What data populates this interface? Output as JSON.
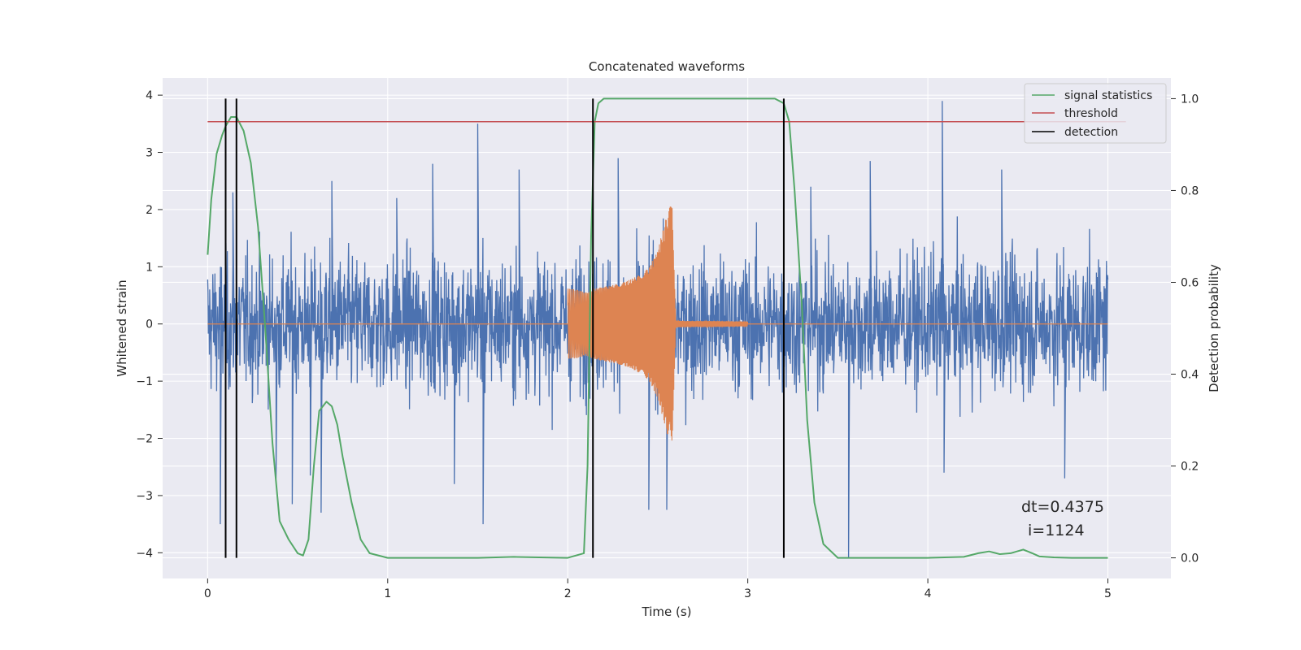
{
  "chart_data": {
    "type": "line",
    "title": "Concatenated waveforms",
    "xlabel": "Time (s)",
    "ylabel": "Whitened strain",
    "ylabel_right": "Detection probability",
    "xlim": [
      -0.25,
      5.35
    ],
    "ylim": [
      -4.45,
      4.3
    ],
    "ylim_right": [
      -0.045,
      1.045
    ],
    "x_ticks": [
      0,
      1,
      2,
      3,
      4,
      5
    ],
    "y_ticks": [
      -4,
      -3,
      -2,
      -1,
      0,
      1,
      2,
      3,
      4
    ],
    "y_ticks_right": [
      0.0,
      0.2,
      0.4,
      0.6,
      0.8,
      1.0
    ],
    "y_tick_labels_right": [
      "0.0",
      "0.2",
      "0.4",
      "0.6",
      "0.8",
      "1.0"
    ],
    "grid": true,
    "legend_position": "top-right",
    "colors": {
      "strain": "#4c72b0",
      "injection": "#dd8452",
      "statistic": "#55a868",
      "threshold": "#c44e52",
      "detection": "#000000",
      "background": "#eaeaf2",
      "grid": "#ffffff"
    },
    "series": [
      {
        "name": "",
        "key": "strain",
        "axis": "left",
        "x_range": [
          0,
          5
        ],
        "envelope_peaks": [
          [
            0.07,
            -3.5
          ],
          [
            0.14,
            2.3
          ],
          [
            0.38,
            -2.7
          ],
          [
            0.47,
            -3.15
          ],
          [
            0.57,
            -2.65
          ],
          [
            0.63,
            -3.3
          ],
          [
            0.69,
            2.5
          ],
          [
            1.05,
            2.2
          ],
          [
            1.25,
            2.8
          ],
          [
            1.37,
            -2.8
          ],
          [
            1.5,
            3.5
          ],
          [
            1.53,
            -3.5
          ],
          [
            1.73,
            2.7
          ],
          [
            2.28,
            2.9
          ],
          [
            2.45,
            -3.25
          ],
          [
            2.55,
            -3.25
          ],
          [
            3.35,
            2.4
          ],
          [
            3.56,
            -4.1
          ],
          [
            3.68,
            2.85
          ],
          [
            4.08,
            3.9
          ],
          [
            4.09,
            -2.6
          ],
          [
            4.41,
            2.7
          ],
          [
            4.76,
            -2.7
          ]
        ]
      },
      {
        "name": "",
        "key": "injection",
        "axis": "left",
        "x": [
          2.0,
          2.05,
          2.1,
          2.15,
          2.2,
          2.25,
          2.3,
          2.35,
          2.4,
          2.45,
          2.5,
          2.55,
          2.58,
          2.6,
          2.65,
          2.8,
          3.0
        ],
        "envelope": [
          0.62,
          0.6,
          0.55,
          0.62,
          0.65,
          0.68,
          0.72,
          0.78,
          0.86,
          0.98,
          1.3,
          1.9,
          2.15,
          0.06,
          0.05,
          0.05,
          0.04
        ]
      },
      {
        "name": "signal statistics",
        "key": "statistic",
        "axis": "right",
        "x": [
          0.0,
          0.02,
          0.05,
          0.08,
          0.1,
          0.13,
          0.16,
          0.2,
          0.24,
          0.28,
          0.32,
          0.36,
          0.4,
          0.45,
          0.5,
          0.53,
          0.56,
          0.59,
          0.62,
          0.66,
          0.69,
          0.72,
          0.75,
          0.8,
          0.85,
          0.9,
          1.0,
          1.5,
          1.7,
          2.0,
          2.09,
          2.11,
          2.13,
          2.15,
          2.17,
          2.2,
          2.3,
          2.6,
          3.0,
          3.15,
          3.2,
          3.23,
          3.26,
          3.3,
          3.33,
          3.37,
          3.42,
          3.5,
          4.0,
          4.2,
          4.28,
          4.34,
          4.4,
          4.46,
          4.53,
          4.58,
          4.62,
          4.7,
          4.8,
          5.0
        ],
        "values": [
          0.66,
          0.78,
          0.88,
          0.92,
          0.94,
          0.96,
          0.96,
          0.93,
          0.86,
          0.72,
          0.5,
          0.25,
          0.08,
          0.04,
          0.01,
          0.005,
          0.04,
          0.2,
          0.32,
          0.34,
          0.33,
          0.29,
          0.22,
          0.12,
          0.04,
          0.01,
          0.0,
          0.0,
          0.002,
          0.0,
          0.01,
          0.2,
          0.7,
          0.95,
          0.99,
          1.0,
          1.0,
          1.0,
          1.0,
          1.0,
          0.99,
          0.95,
          0.8,
          0.55,
          0.3,
          0.12,
          0.03,
          0.0,
          0.0,
          0.002,
          0.01,
          0.014,
          0.008,
          0.01,
          0.018,
          0.01,
          0.003,
          0.001,
          0.0,
          0.0
        ]
      },
      {
        "name": "threshold",
        "key": "threshold",
        "axis": "right",
        "x": [
          0,
          5.1
        ],
        "values": [
          0.95,
          0.95
        ]
      },
      {
        "name": "detection",
        "key": "detection",
        "axis": "right",
        "x": [
          0.1,
          0.16,
          2.14,
          3.2
        ],
        "range": [
          0.0,
          1.0
        ]
      }
    ],
    "legend": [
      "signal statistics",
      "threshold",
      "detection"
    ],
    "annotation": {
      "line1": "dt=0.4375",
      "line2": "i=1124"
    }
  }
}
